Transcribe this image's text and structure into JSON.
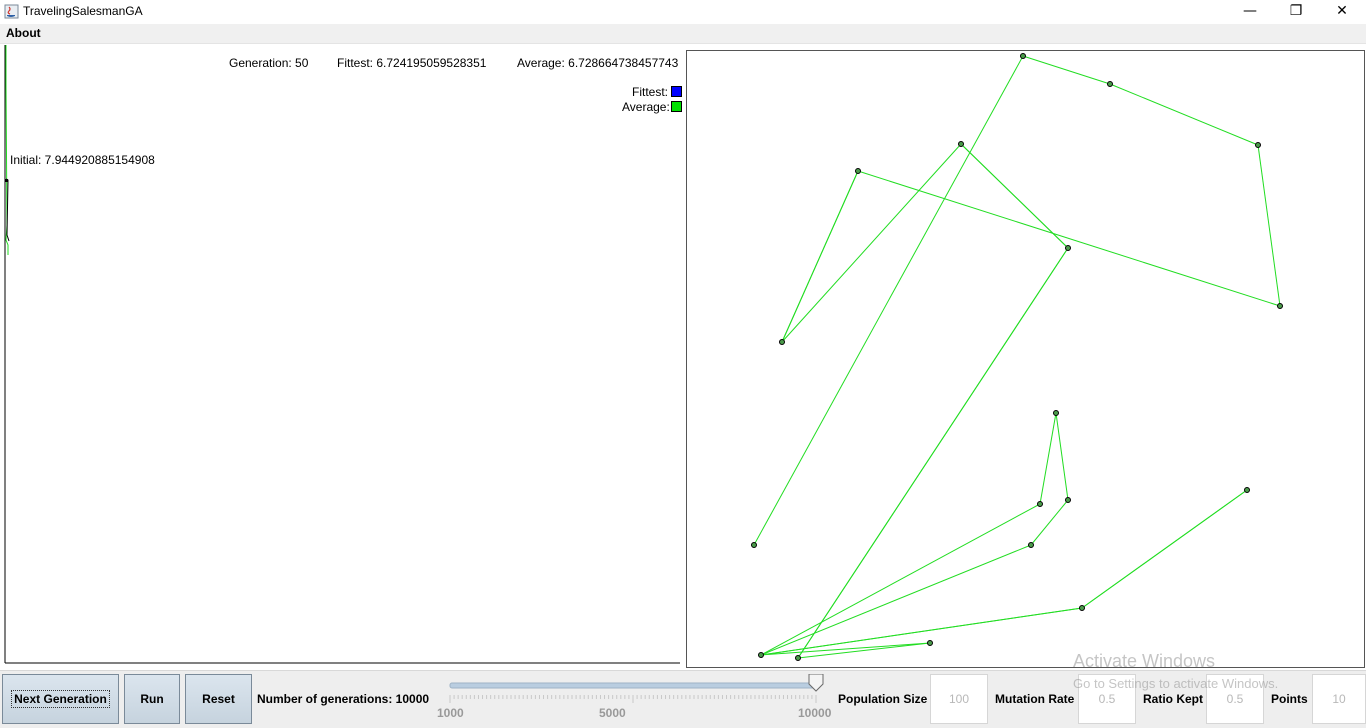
{
  "window": {
    "title": "TravelingSalesmanGA",
    "minimize_glyph": "—",
    "maximize_glyph": "❐",
    "close_glyph": "✕"
  },
  "menu": {
    "items": [
      "About"
    ]
  },
  "stats": {
    "generation": "Generation: 50",
    "fittest": "Fittest: 6.724195059528351",
    "average": "Average: 6.728664738457743",
    "initial": "Initial: 7.944920885154908"
  },
  "legend": {
    "fittest_label": "Fittest:",
    "average_label": "Average:",
    "fittest_color": "#0000ff",
    "average_color": "#00e000"
  },
  "tour": {
    "route_color": "#22dd22",
    "points": [
      [
        336,
        5
      ],
      [
        423,
        33
      ],
      [
        571,
        94
      ],
      [
        593,
        255
      ],
      [
        171,
        120
      ],
      [
        95,
        291
      ],
      [
        274,
        93
      ],
      [
        381,
        197
      ],
      [
        111,
        607
      ],
      [
        243,
        592
      ],
      [
        74,
        604
      ],
      [
        353,
        453
      ],
      [
        369,
        362
      ],
      [
        381,
        449
      ],
      [
        344,
        494
      ],
      [
        395,
        557
      ],
      [
        560,
        439
      ]
    ],
    "route_order": [
      0,
      1,
      2,
      3,
      4,
      5,
      6,
      7,
      8,
      9,
      10,
      11,
      12,
      13,
      14,
      10,
      15,
      16
    ]
  },
  "extra_segments": [
    [
      0,
      16
    ],
    [
      117,
      414
    ],
    [
      1,
      6
    ],
    [
      7,
      8
    ]
  ],
  "controls": {
    "next_generation": "Next Generation",
    "run": "Run",
    "reset": "Reset",
    "num_generations_label": "Number of generations: 10000",
    "slider": {
      "min": "1000",
      "mid": "5000",
      "max": "10000",
      "value": 10000
    },
    "population_label": "Population Size",
    "population_value": "100",
    "mutation_label": "Mutation Rate",
    "mutation_value": "0.5",
    "ratio_label": "Ratio Kept",
    "ratio_value": "0.5",
    "points_label": "Points",
    "points_value": "10"
  },
  "watermark": {
    "line1": "Activate Windows",
    "line2": "Go to Settings to activate Windows."
  }
}
